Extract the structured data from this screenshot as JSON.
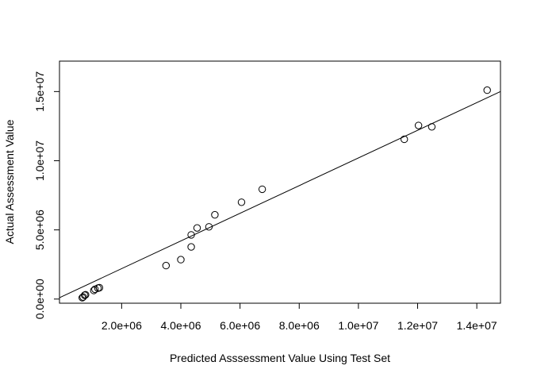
{
  "chart_data": {
    "type": "scatter",
    "title": "",
    "xlabel": "Predicted Asssessment Value Using Test Set",
    "ylabel": "Actual Assessment Value",
    "xlim": [
      -100000,
      14800000
    ],
    "ylim": [
      -300000,
      17200000
    ],
    "x_ticks": [
      {
        "value": 2000000,
        "label": "2.0e+06"
      },
      {
        "value": 4000000,
        "label": "4.0e+06"
      },
      {
        "value": 6000000,
        "label": "6.0e+06"
      },
      {
        "value": 8000000,
        "label": "8.0e+06"
      },
      {
        "value": 10000000,
        "label": "1.0e+07"
      },
      {
        "value": 12000000,
        "label": "1.2e+07"
      },
      {
        "value": 14000000,
        "label": "1.4e+07"
      }
    ],
    "y_ticks": [
      {
        "value": 0,
        "label": "0.0e+00"
      },
      {
        "value": 5000000,
        "label": "5.0e+06"
      },
      {
        "value": 10000000,
        "label": "1.0e+07"
      },
      {
        "value": 15000000,
        "label": "1.5e+07"
      }
    ],
    "points": [
      {
        "x": 670000,
        "y": 100000
      },
      {
        "x": 700000,
        "y": 150000
      },
      {
        "x": 750000,
        "y": 280000
      },
      {
        "x": 780000,
        "y": 310000
      },
      {
        "x": 1060000,
        "y": 620000
      },
      {
        "x": 1100000,
        "y": 710000
      },
      {
        "x": 1200000,
        "y": 790000
      },
      {
        "x": 1250000,
        "y": 820000
      },
      {
        "x": 3500000,
        "y": 2420000
      },
      {
        "x": 4000000,
        "y": 2850000
      },
      {
        "x": 4350000,
        "y": 3770000
      },
      {
        "x": 4350000,
        "y": 4640000
      },
      {
        "x": 4550000,
        "y": 5140000
      },
      {
        "x": 4950000,
        "y": 5220000
      },
      {
        "x": 5150000,
        "y": 6090000
      },
      {
        "x": 6050000,
        "y": 7000000
      },
      {
        "x": 6750000,
        "y": 7940000
      },
      {
        "x": 11550000,
        "y": 11550000
      },
      {
        "x": 12030000,
        "y": 12550000
      },
      {
        "x": 12480000,
        "y": 12450000
      },
      {
        "x": 14350000,
        "y": 15100000
      }
    ],
    "fit_line": {
      "intercept": 200000,
      "slope": 1.0
    },
    "grid": false,
    "legend": "none"
  }
}
